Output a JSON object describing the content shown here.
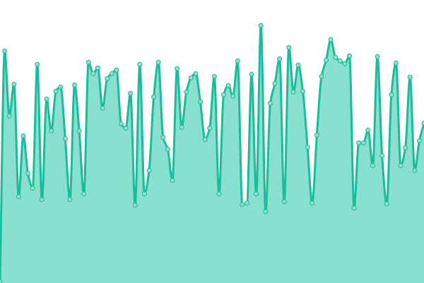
{
  "chart_data": {
    "type": "area",
    "title": "",
    "xlabel": "",
    "ylabel": "",
    "ylim": [
      0,
      400
    ],
    "grid": false,
    "legend": "none",
    "smoothed": true,
    "markers": true,
    "colors": {
      "line": "#1abc9c",
      "fill": "#8ae0ce",
      "marker_fill": "#8fe1cf",
      "marker_stroke": "#1fb892"
    },
    "x": [
      0,
      1,
      2,
      3,
      4,
      5,
      6,
      7,
      8,
      9,
      10,
      11,
      12,
      13,
      14,
      15,
      16,
      17,
      18,
      19,
      20,
      21,
      22,
      23,
      24,
      25,
      26,
      27,
      28,
      29,
      30,
      31,
      32,
      33,
      34,
      35,
      36,
      37,
      38,
      39,
      40,
      41,
      42,
      43,
      44,
      45,
      46,
      47,
      48,
      49,
      50,
      51,
      52,
      53,
      54,
      55,
      56,
      57,
      58,
      59,
      60,
      61,
      62,
      63,
      64,
      65,
      66,
      67,
      68,
      69,
      70,
      71,
      72,
      73,
      74,
      75,
      76,
      77,
      78,
      79,
      80,
      81,
      82,
      83,
      84,
      85,
      86,
      87,
      88,
      89,
      90,
      91
    ],
    "values": [
      2,
      328,
      236,
      281,
      122,
      208,
      155,
      134,
      309,
      118,
      260,
      215,
      271,
      277,
      204,
      118,
      280,
      215,
      126,
      312,
      296,
      304,
      247,
      289,
      296,
      301,
      225,
      219,
      268,
      110,
      309,
      126,
      159,
      263,
      312,
      206,
      189,
      145,
      303,
      220,
      270,
      290,
      296,
      256,
      203,
      219,
      292,
      126,
      266,
      279,
      264,
      314,
      111,
      113,
      295,
      126,
      364,
      101,
      254,
      282,
      317,
      115,
      333,
      270,
      308,
      271,
      192,
      113,
      209,
      292,
      315,
      344,
      319,
      314,
      310,
      321,
      106,
      198,
      198,
      216,
      166,
      320,
      180,
      112,
      266,
      311,
      166,
      191,
      291,
      159,
      201,
      226
    ]
  }
}
